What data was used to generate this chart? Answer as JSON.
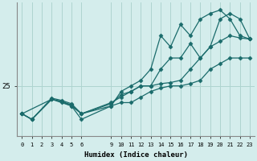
{
  "xlabel": "Humidex (Indice chaleur)",
  "bg_color": "#d4edec",
  "grid_color": "#aed4d0",
  "line_color": "#1a6b6b",
  "xticks": [
    0,
    1,
    2,
    3,
    4,
    5,
    6,
    9,
    10,
    11,
    12,
    13,
    14,
    15,
    16,
    17,
    18,
    19,
    20,
    21,
    22,
    23
  ],
  "xlim": [
    -0.5,
    23.5
  ],
  "ylim": [
    20.5,
    32.5
  ],
  "ytick_val": 25,
  "line1_x": [
    0,
    1,
    3,
    4,
    5,
    6,
    9,
    10,
    11,
    12,
    13,
    14,
    15,
    16,
    17,
    18,
    19,
    20,
    21,
    22,
    23
  ],
  "line1_y": [
    22.5,
    22.0,
    23.8,
    23.5,
    23.2,
    22.5,
    23.2,
    23.5,
    23.5,
    24.0,
    24.5,
    24.8,
    25.0,
    25.0,
    25.2,
    25.5,
    26.5,
    27.0,
    27.5,
    27.5,
    27.5
  ],
  "line2_x": [
    0,
    1,
    3,
    4,
    5,
    6,
    9,
    10,
    11,
    12,
    13,
    14,
    15,
    16,
    17,
    18,
    19,
    20,
    21,
    22,
    23
  ],
  "line2_y": [
    22.5,
    22.0,
    23.9,
    23.7,
    23.4,
    22.5,
    23.5,
    24.0,
    24.5,
    25.0,
    25.0,
    25.2,
    25.3,
    25.5,
    26.5,
    27.5,
    28.5,
    29.0,
    29.5,
    29.3,
    29.2
  ],
  "line3_x": [
    0,
    3,
    4,
    5,
    6,
    9,
    10,
    11,
    12,
    13,
    14,
    15,
    16,
    17,
    18,
    19,
    20,
    21,
    22,
    23
  ],
  "line3_y": [
    22.5,
    23.8,
    23.6,
    23.2,
    22.0,
    23.2,
    24.5,
    25.0,
    25.5,
    26.5,
    29.5,
    28.5,
    30.5,
    29.5,
    31.0,
    31.5,
    31.8,
    31.0,
    29.5,
    29.2
  ],
  "line4_x": [
    0,
    1,
    3,
    4,
    5,
    6,
    9,
    10,
    11,
    12,
    13,
    14,
    15,
    16,
    17,
    18,
    19,
    20,
    21,
    22,
    23
  ],
  "line4_y": [
    22.5,
    22.0,
    23.8,
    23.6,
    23.3,
    22.5,
    23.4,
    24.2,
    24.5,
    25.0,
    25.0,
    26.5,
    27.5,
    27.5,
    28.8,
    27.5,
    28.5,
    31.0,
    31.5,
    31.0,
    29.2
  ]
}
